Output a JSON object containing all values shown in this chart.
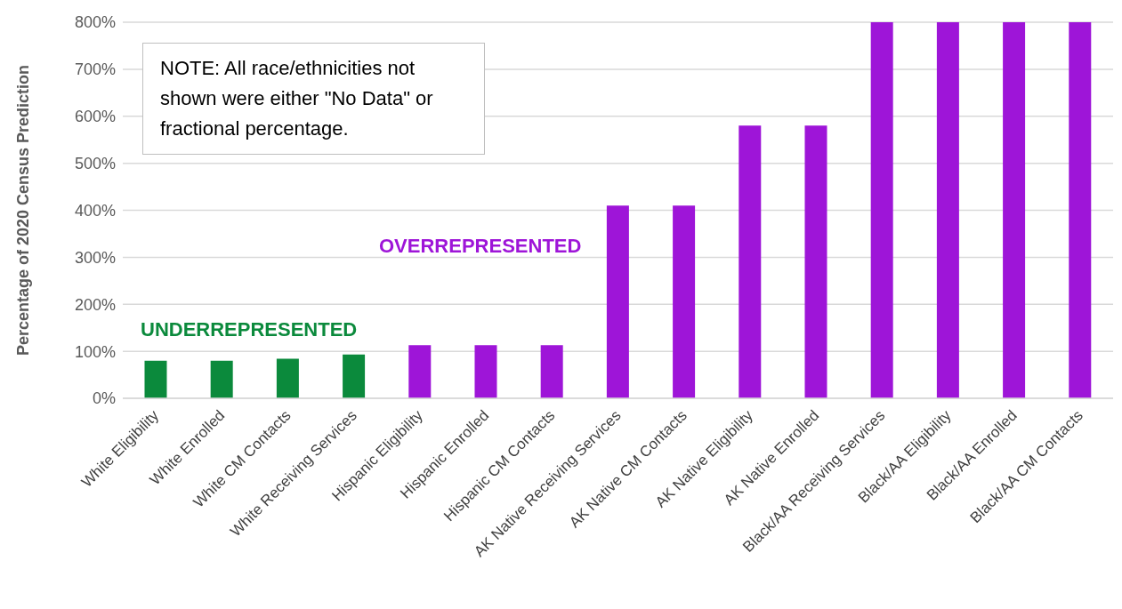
{
  "chart_data": {
    "type": "bar",
    "ylabel": "Percentage of 2020 Census Prediction",
    "categories": [
      "White  Eligibility",
      "White  Enrolled",
      "White  CM Contacts",
      "White  Receiving Services",
      "Hispanic Eligibility",
      "Hispanic Enrolled",
      "Hispanic CM Contacts",
      "AK Native Receiving Services",
      "AK Native CM Contacts",
      "AK Native Eligibility",
      "AK Native Enrolled",
      "Black/AA Receiving Services",
      "Black/AA Eligibility",
      "Black/AA Enrolled",
      "Black/AA CM Contacts"
    ],
    "values": [
      80,
      80,
      84,
      93,
      113,
      113,
      113,
      410,
      410,
      580,
      580,
      800,
      800,
      800,
      800
    ],
    "colors": [
      "#0b8a3c",
      "#0b8a3c",
      "#0b8a3c",
      "#0b8a3c",
      "#9e15d8",
      "#9e15d8",
      "#9e15d8",
      "#9e15d8",
      "#9e15d8",
      "#9e15d8",
      "#9e15d8",
      "#9e15d8",
      "#9e15d8",
      "#9e15d8",
      "#9e15d8"
    ],
    "ylim": [
      0,
      800
    ],
    "yticks": [
      {
        "value": 0,
        "label": "0%"
      },
      {
        "value": 100,
        "label": "100%"
      },
      {
        "value": 200,
        "label": "200%"
      },
      {
        "value": 300,
        "label": "300%"
      },
      {
        "value": 400,
        "label": "400%"
      },
      {
        "value": 500,
        "label": "500%"
      },
      {
        "value": 600,
        "label": "600%"
      },
      {
        "value": 700,
        "label": "700%"
      },
      {
        "value": 800,
        "label": "800%"
      }
    ],
    "grid": "y",
    "annotations": [
      "NOTE: All  race/ethnicities not shown were either \"No Data\" or fractional percentage.",
      "UNDERREPRESENTED",
      "OVERREPRESENTED"
    ]
  }
}
